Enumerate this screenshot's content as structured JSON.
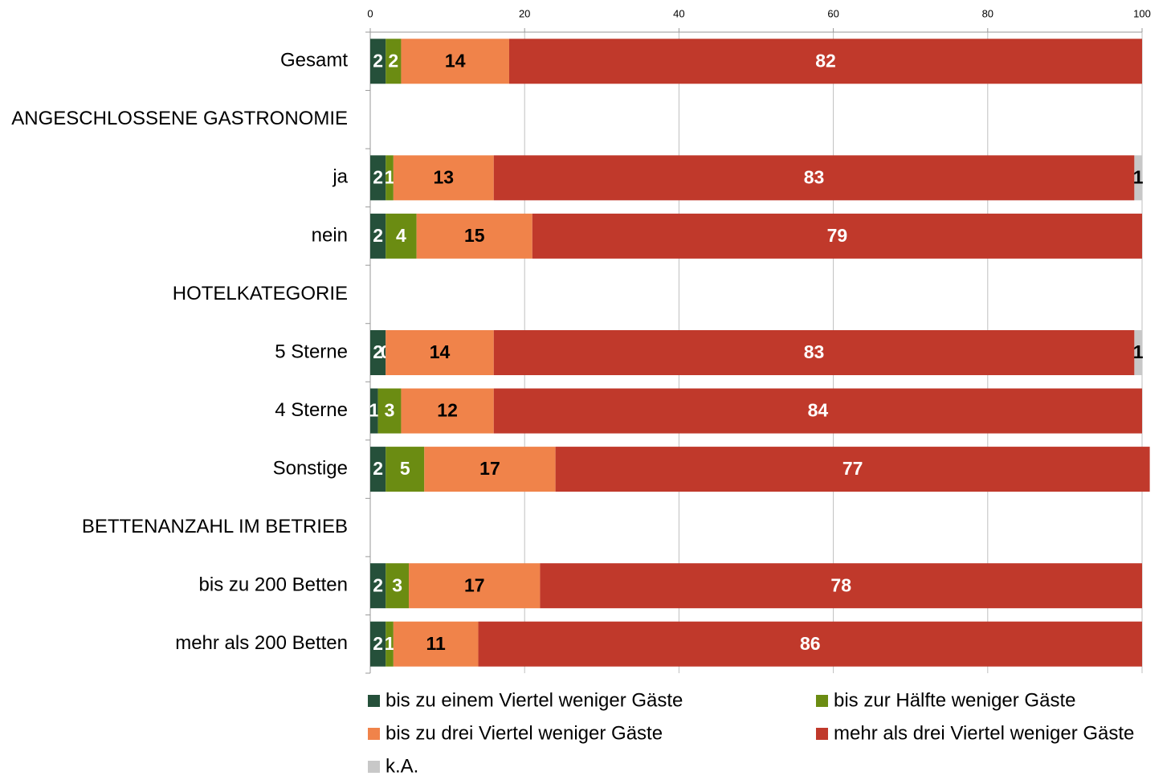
{
  "chart_data": {
    "type": "stacked-barh",
    "categories": [
      "Gesamt",
      "ANGESCHLOSSENE GASTRONOMIE",
      "ja",
      "nein",
      "HOTELKATEGORIE",
      "5 Sterne",
      "4 Sterne",
      "Sonstige",
      "BETTENANZAHL IM BETRIEB",
      "bis zu 200 Betten",
      "mehr als 200 Betten"
    ],
    "series": [
      {
        "name": "bis zu einem Viertel weniger Gäste",
        "color": "#25503a",
        "values": [
          2,
          null,
          2,
          2,
          null,
          2,
          1,
          2,
          null,
          2,
          2
        ]
      },
      {
        "name": "bis zur Hälfte weniger Gäste",
        "color": "#6b8c12",
        "values": [
          2,
          null,
          1,
          4,
          null,
          0,
          3,
          5,
          null,
          3,
          1
        ]
      },
      {
        "name": "bis zu drei Viertel weniger Gäste",
        "color": "#f0834a",
        "values": [
          14,
          null,
          13,
          15,
          null,
          14,
          12,
          17,
          null,
          17,
          11
        ]
      },
      {
        "name": "mehr als drei Viertel weniger Gäste",
        "color": "#c0392b",
        "values": [
          82,
          null,
          83,
          79,
          null,
          83,
          84,
          77,
          null,
          78,
          86
        ]
      },
      {
        "name": "k.A.",
        "color": "#c8c8c8",
        "values": [
          null,
          null,
          1,
          null,
          null,
          1,
          null,
          null,
          null,
          null,
          null
        ]
      }
    ],
    "xlim": [
      0,
      100
    ],
    "xticks": [
      0,
      20,
      40,
      60,
      80,
      100
    ],
    "grid": true
  }
}
